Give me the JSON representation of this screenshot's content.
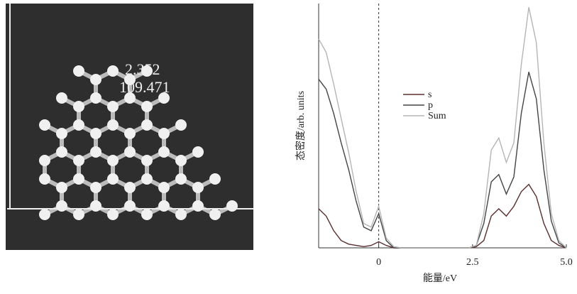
{
  "image": {
    "labels": [
      "2.352",
      "109.471"
    ]
  },
  "chart_data": {
    "type": "line",
    "x_label": "能量/eV",
    "y_label": "态密度/arb. units",
    "x": [
      -1.6,
      -1.4,
      -1.2,
      -1.0,
      -0.8,
      -0.6,
      -0.4,
      -0.2,
      0,
      0.2,
      0.4,
      0.6,
      0.8,
      1.0,
      1.2,
      1.4,
      1.6,
      1.8,
      2.0,
      2.2,
      2.4,
      2.6,
      2.8,
      3.0,
      3.2,
      3.4,
      3.6,
      3.8,
      4.0,
      4.2,
      4.4,
      4.6,
      4.8,
      5.0
    ],
    "series": [
      {
        "name": "s",
        "color": "#5a2e2e",
        "values": [
          0.16,
          0.13,
          0.07,
          0.03,
          0.015,
          0.01,
          0.005,
          0.01,
          0.025,
          0.01,
          0,
          0,
          0,
          0,
          0,
          0,
          0,
          0,
          0,
          0,
          0,
          0.005,
          0.03,
          0.13,
          0.16,
          0.13,
          0.17,
          0.23,
          0.26,
          0.21,
          0.1,
          0.03,
          0.01,
          0
        ]
      },
      {
        "name": "p",
        "color": "#444444",
        "values": [
          0.69,
          0.65,
          0.55,
          0.43,
          0.32,
          0.19,
          0.085,
          0.07,
          0.14,
          0.03,
          0,
          0,
          0,
          0,
          0,
          0,
          0,
          0,
          0,
          0,
          0,
          0.01,
          0.1,
          0.27,
          0.3,
          0.22,
          0.29,
          0.55,
          0.72,
          0.61,
          0.32,
          0.11,
          0.02,
          0
        ]
      },
      {
        "name": "Sum",
        "color": "#b5b5b5",
        "values": [
          0.855,
          0.8,
          0.67,
          0.53,
          0.39,
          0.23,
          0.1,
          0.085,
          0.17,
          0.04,
          0.005,
          0,
          0,
          0,
          0,
          0,
          0,
          0,
          0,
          0,
          0,
          0.01,
          0.14,
          0.4,
          0.45,
          0.35,
          0.43,
          0.75,
          0.985,
          0.84,
          0.43,
          0.14,
          0.03,
          0
        ]
      }
    ],
    "xlim": [
      -1.6,
      5.0
    ],
    "xticks": [
      0,
      2.5,
      {
        "value": 5.0,
        "label": "5.0"
      }
    ],
    "ylim": [
      0,
      1
    ]
  }
}
